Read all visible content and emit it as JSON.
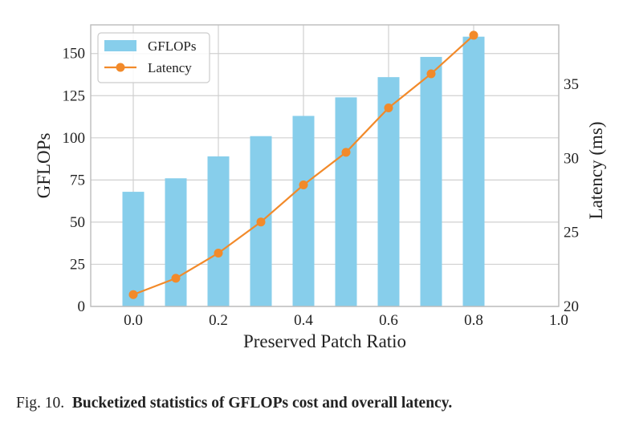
{
  "chart_data": {
    "type": "bar",
    "xlabel": "Preserved Patch Ratio",
    "ylabel": "GFLOPs",
    "y2label": "Latency (ms)",
    "xlim": [
      -0.1,
      1.0
    ],
    "ylim": [
      0,
      167
    ],
    "y2lim": [
      20,
      39
    ],
    "xticks": [
      "0.0",
      "0.2",
      "0.4",
      "0.6",
      "0.8",
      "1.0"
    ],
    "xtick_values": [
      0.0,
      0.2,
      0.4,
      0.6,
      0.8,
      1.0
    ],
    "yticks": [
      "0",
      "25",
      "50",
      "75",
      "100",
      "125",
      "150"
    ],
    "ytick_values": [
      0,
      25,
      50,
      75,
      100,
      125,
      150
    ],
    "y2ticks": [
      "20",
      "25",
      "30",
      "35"
    ],
    "y2tick_values": [
      20,
      25,
      30,
      35
    ],
    "grid": true,
    "legend_position": "top-left",
    "x": [
      0.0,
      0.1,
      0.2,
      0.3,
      0.4,
      0.5,
      0.6,
      0.7,
      0.8
    ],
    "series": [
      {
        "name": "GFLOPs",
        "type": "bar",
        "axis": "left",
        "values": [
          68,
          76,
          89,
          101,
          113,
          124,
          136,
          148,
          160
        ]
      },
      {
        "name": "Latency",
        "type": "line",
        "axis": "right",
        "values": [
          20.8,
          21.9,
          23.6,
          25.7,
          28.2,
          30.4,
          33.4,
          35.7,
          38.3
        ]
      }
    ]
  },
  "colors": {
    "bar": "#87ceeb",
    "line": "#f28a2a",
    "grid": "#d0d0d0",
    "axis": "#bcbcbc",
    "text": "#222222"
  },
  "caption": {
    "label": "Fig. 10.",
    "text": "Bucketized statistics of GFLOPs cost and overall latency."
  }
}
